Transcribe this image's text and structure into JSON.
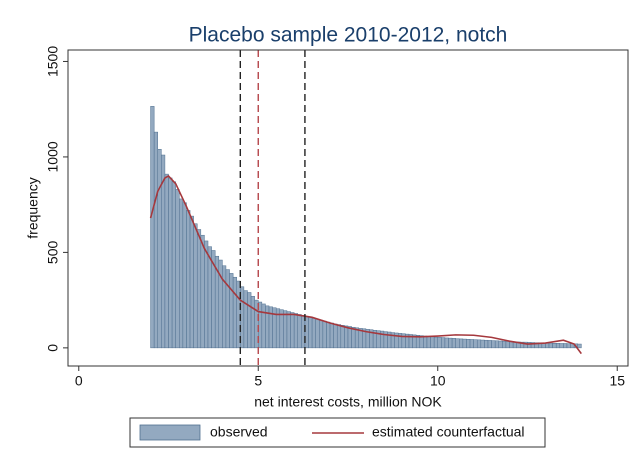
{
  "chart_data": {
    "type": "histogram",
    "title": "Placebo sample 2010-2012, notch",
    "x_label": "net interest costs, million NOK",
    "y_label": "frequency",
    "xlim": [
      -0.3,
      15.3
    ],
    "ylim": [
      -95,
      1560
    ],
    "xticks": [
      0,
      5,
      10,
      15
    ],
    "yticks": [
      0,
      500,
      1000,
      1500
    ],
    "bins": [
      2,
      2.1,
      2.2,
      2.3,
      2.4,
      2.5,
      2.6,
      2.7,
      2.8,
      2.9,
      3,
      3.1,
      3.2,
      3.3,
      3.4,
      3.5,
      3.6,
      3.7,
      3.8,
      3.9,
      4,
      4.1,
      4.2,
      4.3,
      4.4,
      4.5,
      4.6,
      4.7,
      4.8,
      4.9,
      5,
      5.1,
      5.2,
      5.3,
      5.4,
      5.5,
      5.6,
      5.7,
      5.8,
      5.9,
      6,
      6.1,
      6.2,
      6.3,
      6.4,
      6.5,
      6.6,
      6.7,
      6.8,
      6.9,
      7,
      7.1,
      7.2,
      7.3,
      7.4,
      7.5,
      7.6,
      7.7,
      7.8,
      7.9,
      8,
      8.1,
      8.2,
      8.3,
      8.4,
      8.5,
      8.6,
      8.7,
      8.8,
      8.9,
      9,
      9.1,
      9.2,
      9.3,
      9.4,
      9.5,
      9.6,
      9.7,
      9.8,
      9.9,
      10,
      10.1,
      10.2,
      10.3,
      10.4,
      10.5,
      10.6,
      10.7,
      10.8,
      10.9,
      11,
      11.1,
      11.2,
      11.3,
      11.4,
      11.5,
      11.6,
      11.7,
      11.8,
      11.9,
      12,
      12.1,
      12.2,
      12.3,
      12.4,
      12.5,
      12.6,
      12.7,
      12.8,
      12.9,
      13,
      13.1,
      13.2,
      13.3,
      13.4,
      13.5,
      13.6,
      13.7,
      13.8,
      13.9,
      14
    ],
    "series": [
      {
        "name": "observed",
        "type": "histogram",
        "color": "#93a9c0",
        "edge": "#4f6f8f",
        "values": [
          1265,
          1130,
          1040,
          1010,
          910,
          890,
          870,
          830,
          780,
          760,
          720,
          690,
          650,
          620,
          590,
          560,
          530,
          510,
          480,
          460,
          430,
          410,
          390,
          370,
          350,
          320,
          300,
          290,
          270,
          250,
          240,
          230,
          220,
          215,
          210,
          205,
          200,
          195,
          190,
          185,
          180,
          175,
          170,
          165,
          160,
          155,
          150,
          145,
          140,
          135,
          130,
          125,
          122,
          118,
          115,
          112,
          108,
          105,
          102,
          100,
          97,
          95,
          92,
          90,
          88,
          85,
          83,
          80,
          78,
          76,
          74,
          72,
          70,
          68,
          66,
          64,
          62,
          60,
          58,
          56,
          55,
          54,
          52,
          51,
          50,
          48,
          47,
          46,
          45,
          44,
          43,
          42,
          41,
          40,
          39,
          38,
          37,
          36,
          35,
          34,
          33,
          32,
          31,
          30,
          30,
          29,
          28,
          27,
          27,
          26,
          25,
          25,
          24,
          24,
          23,
          23,
          22,
          22,
          21,
          20
        ]
      },
      {
        "name": "estimated counterfactual",
        "type": "line",
        "color": "#a5383d",
        "x": [
          2,
          2.2,
          2.4,
          2.5,
          2.7,
          3,
          3.5,
          4,
          4.5,
          5,
          5.5,
          6,
          6.5,
          7,
          7.5,
          8,
          8.5,
          9,
          9.5,
          10,
          10.5,
          11,
          11.5,
          12,
          12.5,
          13,
          13.5,
          13.8,
          14
        ],
        "values": [
          680,
          820,
          890,
          900,
          860,
          740,
          520,
          360,
          250,
          190,
          175,
          175,
          160,
          130,
          105,
          85,
          70,
          60,
          58,
          62,
          68,
          66,
          55,
          35,
          20,
          25,
          40,
          20,
          -30
        ]
      }
    ],
    "reference_lines": [
      {
        "x": 4.5,
        "color": "#222222"
      },
      {
        "x": 5,
        "color": "#b5454a"
      },
      {
        "x": 6.3,
        "color": "#222222"
      }
    ]
  }
}
